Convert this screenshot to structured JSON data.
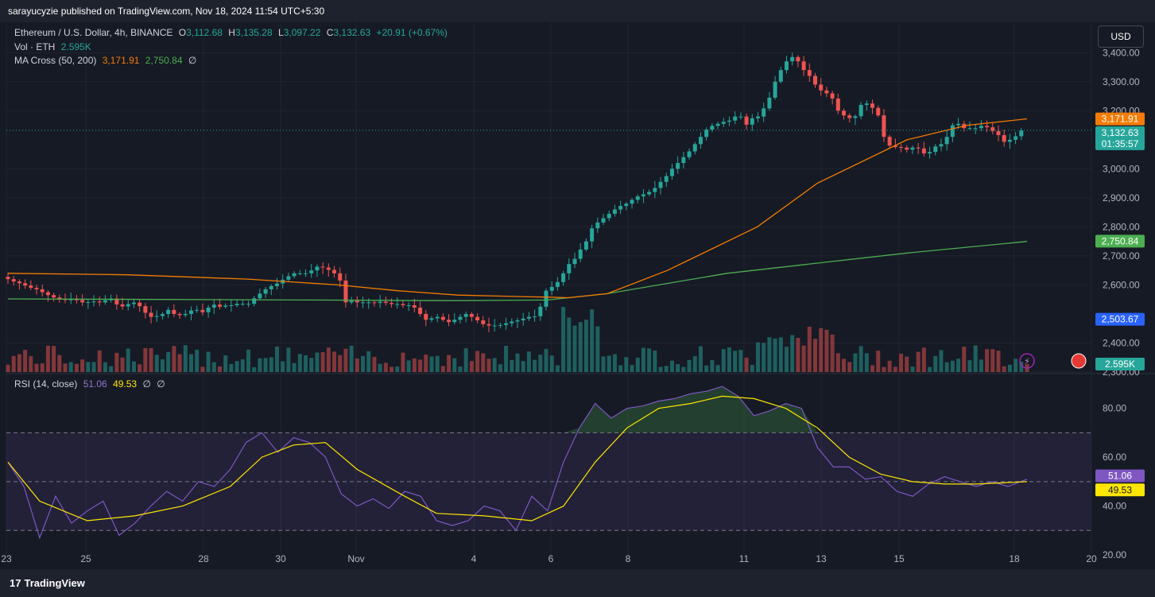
{
  "header": {
    "publish_text": "sarayucyzie published on TradingView.com, Nov 18, 2024 11:54 UTC+5:30"
  },
  "legend": {
    "symbol": "Ethereum / U.S. Dollar, 4h, BINANCE",
    "o_label": "O",
    "o_value": "3,112.68",
    "h_label": "H",
    "h_value": "3,135.28",
    "l_label": "L",
    "l_value": "3,097.22",
    "c_label": "C",
    "c_value": "3,132.63",
    "change": "+20.91 (+0.67%)",
    "vol_label": "Vol · ETH",
    "vol_value": "2.595K",
    "ma_label": "MA Cross (50, 200)",
    "ma50_value": "3,171.91",
    "ma200_value": "2,750.84",
    "ma_extra": "∅",
    "rsi_label": "RSI (14, close)",
    "rsi_value": "51.06",
    "rsi_ma_value": "49.53",
    "rsi_extra1": "∅",
    "rsi_extra2": "∅"
  },
  "currency_button": "USD",
  "price_badges": {
    "ma50": "3,171.91",
    "close": "3,132.63",
    "countdown": "01:35:57",
    "ma200": "2,750.84",
    "crosshair": "2,503.67",
    "volume": "2.595K",
    "rsi": "51.06",
    "rsi_ma": "49.53"
  },
  "footer": {
    "brand": "TradingView",
    "logo_mark": "17"
  },
  "colors": {
    "up": "#26a69a",
    "down": "#ef5350",
    "ma50": "#f57c00",
    "ma200": "#4caf50",
    "rsi": "#7e57c2",
    "rsi_ma": "#ffe600",
    "background": "#161a25"
  },
  "chart_data": {
    "type": "candlestick",
    "symbol": "Ethereum / U.S. Dollar",
    "interval": "4h",
    "price_ticks": [
      "3,400.00",
      "3,300.00",
      "3,200.00",
      "3,000.00",
      "2,900.00",
      "2,800.00",
      "2,700.00",
      "2,600.00",
      "2,400.00",
      "2,300.00"
    ],
    "price_tick_values": [
      3400,
      3300,
      3200,
      3000,
      2900,
      2800,
      2700,
      2600,
      2400,
      2300
    ],
    "price_range": [
      2300,
      3450
    ],
    "date_ticks": [
      "23",
      "25",
      "28",
      "30",
      "Nov",
      "4",
      "6",
      "8",
      "11",
      "13",
      "15",
      "18",
      "20"
    ],
    "candles": [
      [
        2628,
        2620,
        2612,
        2606,
        2598,
        2590,
        2585,
        2575,
        2565,
        2557,
        2552,
        2548,
        2550,
        2548,
        2540,
        2541,
        2543,
        2540,
        2547,
        2553,
        2533,
        2526,
        2534,
        2539,
        2527,
        2504,
        2490,
        2493,
        2500,
        2514,
        2500,
        2496,
        2500,
        2512,
        2514,
        2506,
        2522,
        2532,
        2525,
        2529,
        2530,
        2535,
        2535,
        2535,
        2554,
        2570,
        2585,
        2596,
        2605,
        2618,
        2630,
        2640,
        2640,
        2640,
        2650,
        2663,
        2660,
        2652,
        2640,
        2615,
        2540,
        2545,
        2540,
        2540,
        2540,
        2538,
        2542,
        2538,
        2534,
        2534,
        2530,
        2530,
        2522,
        2500,
        2480,
        2485,
        2490,
        2480,
        2472,
        2480,
        2490,
        2500,
        2490,
        2478,
        2465,
        2460,
        2460,
        2462,
        2468,
        2474,
        2478,
        2484,
        2490,
        2492,
        2525,
        2580,
        2593,
        2610,
        2640,
        2672,
        2690,
        2722,
        2750,
        2795,
        2815,
        2830,
        2845,
        2860,
        2872,
        2880,
        2893,
        2905,
        2912,
        2920,
        2934,
        2955,
        2975,
        3000,
        3020,
        3040,
        3060,
        3085,
        3110,
        3135,
        3148,
        3155,
        3162,
        3166,
        3180,
        3180,
        3152,
        3174,
        3180,
        3208,
        3245,
        3300,
        3340,
        3370,
        3385,
        3370,
        3340,
        3320,
        3290,
        3270,
        3260,
        3242,
        3200,
        3184,
        3175,
        3181,
        3220,
        3225,
        3210,
        3184,
        3110,
        3080,
        3075,
        3073,
        3066,
        3073,
        3070,
        3053,
        3058,
        3077,
        3085,
        3110,
        3150,
        3155,
        3140,
        3140,
        3140,
        3148,
        3143,
        3130,
        3116,
        3093,
        3100,
        3112,
        3112
      ],
      [
        2620,
        2612,
        2606,
        2598,
        2590,
        2585,
        2575,
        2565,
        2557,
        2552,
        2548,
        2550,
        2548,
        2540,
        2541,
        2543,
        2540,
        2547,
        2553,
        2533,
        2526,
        2534,
        2539,
        2527,
        2504,
        2490,
        2493,
        2500,
        2514,
        2500,
        2496,
        2500,
        2512,
        2514,
        2506,
        2522,
        2532,
        2525,
        2529,
        2530,
        2535,
        2535,
        2535,
        2554,
        2570,
        2585,
        2596,
        2605,
        2618,
        2630,
        2640,
        2640,
        2640,
        2650,
        2663,
        2660,
        2652,
        2640,
        2615,
        2540,
        2545,
        2540,
        2540,
        2540,
        2538,
        2542,
        2538,
        2534,
        2534,
        2530,
        2530,
        2522,
        2500,
        2480,
        2485,
        2490,
        2480,
        2472,
        2480,
        2490,
        2500,
        2490,
        2478,
        2465,
        2460,
        2460,
        2462,
        2468,
        2474,
        2478,
        2484,
        2490,
        2492,
        2525,
        2580,
        2593,
        2610,
        2640,
        2672,
        2690,
        2722,
        2750,
        2795,
        2815,
        2830,
        2845,
        2860,
        2872,
        2880,
        2893,
        2905,
        2912,
        2920,
        2934,
        2955,
        2975,
        3000,
        3020,
        3040,
        3060,
        3085,
        3110,
        3135,
        3148,
        3155,
        3162,
        3166,
        3180,
        3180,
        3152,
        3174,
        3180,
        3208,
        3245,
        3300,
        3340,
        3370,
        3385,
        3370,
        3340,
        3320,
        3290,
        3270,
        3260,
        3242,
        3200,
        3184,
        3175,
        3181,
        3220,
        3225,
        3210,
        3184,
        3110,
        3080,
        3075,
        3073,
        3066,
        3073,
        3070,
        3053,
        3058,
        3077,
        3085,
        3110,
        3150,
        3155,
        3140,
        3140,
        3140,
        3148,
        3143,
        3130,
        3116,
        3093,
        3100,
        3112,
        3132
      ]
    ],
    "ma50_path": [
      [
        0,
        2640
      ],
      [
        40,
        2635
      ],
      [
        80,
        2620
      ],
      [
        110,
        2600
      ],
      [
        130,
        2580
      ],
      [
        150,
        2565
      ],
      [
        170,
        2560
      ],
      [
        180,
        2558
      ],
      [
        187,
        2556
      ],
      [
        200,
        2570
      ],
      [
        220,
        2650
      ],
      [
        250,
        2800
      ],
      [
        270,
        2950
      ],
      [
        300,
        3100
      ],
      [
        320,
        3150
      ],
      [
        340,
        3172
      ]
    ],
    "ma200_path": [
      [
        0,
        2552
      ],
      [
        50,
        2550
      ],
      [
        100,
        2548
      ],
      [
        150,
        2546
      ],
      [
        180,
        2548
      ],
      [
        200,
        2570
      ],
      [
        240,
        2640
      ],
      [
        300,
        2710
      ],
      [
        340,
        2750
      ]
    ],
    "volume": {
      "last": "2.595K",
      "bars": 284
    },
    "rsi": {
      "range": [
        20,
        90
      ],
      "ticks": [
        "80.00",
        "60.00",
        "40.00",
        "20.00"
      ],
      "tick_values": [
        80,
        60,
        40,
        20
      ],
      "upper_band": 70,
      "mid_band": 50,
      "lower_band": 30,
      "last": 51.06,
      "ma_last": 49.53
    }
  }
}
